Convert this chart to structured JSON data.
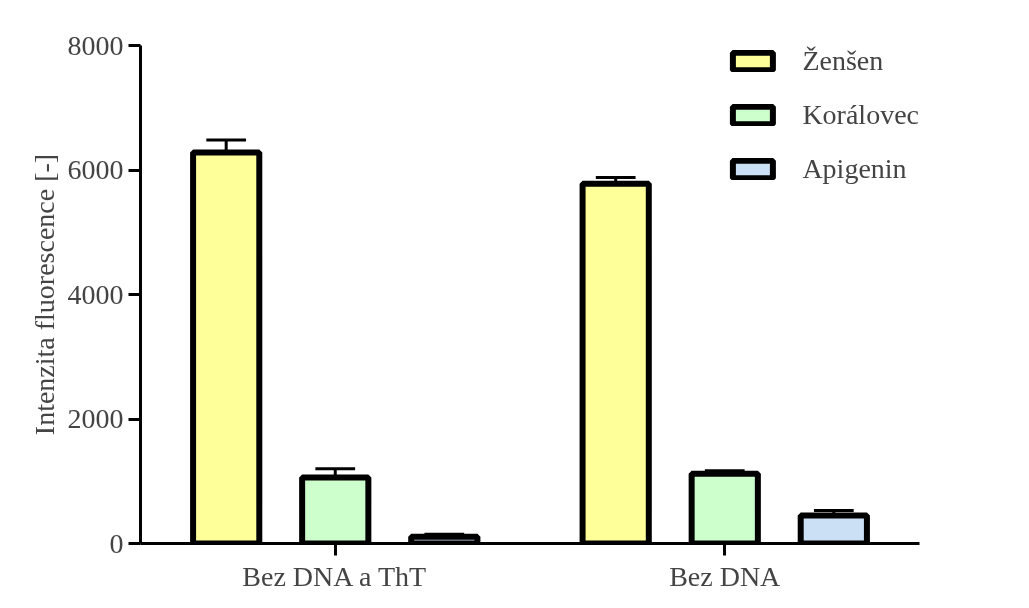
{
  "chart_data": {
    "type": "bar",
    "ylabel": "Intenzita fluorescence [-]",
    "categories": [
      "Bez DNA a ThT",
      "Bez DNA"
    ],
    "series": [
      {
        "name": "Ženšen",
        "color": "#ffff99",
        "values": [
          6280,
          5780
        ],
        "errors": [
          200,
          100
        ]
      },
      {
        "name": "Korálovec",
        "color": "#ccffcc",
        "values": [
          1060,
          1120
        ],
        "errors": [
          140,
          50
        ]
      },
      {
        "name": "Apigenin",
        "color": "#cce0f5",
        "values": [
          110,
          450
        ],
        "errors": [
          40,
          80
        ]
      }
    ],
    "ylim": [
      0,
      8000
    ],
    "yticks": [
      0,
      2000,
      4000,
      6000,
      8000
    ],
    "grid": false,
    "legend": "top right"
  }
}
